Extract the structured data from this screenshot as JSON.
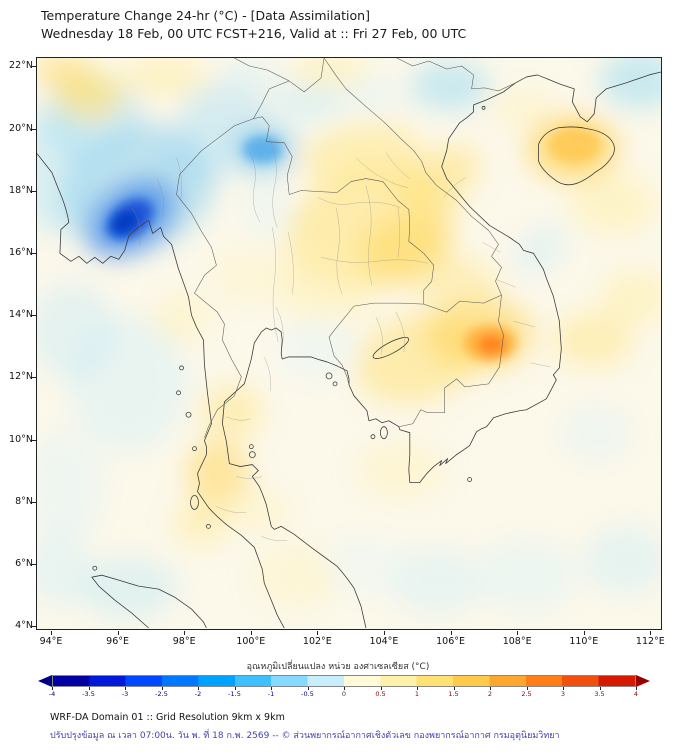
{
  "header": {
    "title": "Temperature Change 24-hr (°C) - [Data Assimilation]",
    "subtitle": "Wednesday 18 Feb, 00 UTC FCST+216, Valid at :: Fri 27 Feb, 00 UTC"
  },
  "map": {
    "projection": {
      "lon0": 93.55,
      "lat0": 22.3,
      "sx": 33.3,
      "sy": 31.1
    },
    "lat_ticks": [
      {
        "value": 22,
        "label": "22°N"
      },
      {
        "value": 20,
        "label": "20°N"
      },
      {
        "value": 18,
        "label": "18°N"
      },
      {
        "value": 16,
        "label": "16°N"
      },
      {
        "value": 14,
        "label": "14°N"
      },
      {
        "value": 12,
        "label": "12°N"
      },
      {
        "value": 10,
        "label": "10°N"
      },
      {
        "value": 8,
        "label": "8°N"
      },
      {
        "value": 6,
        "label": "6°N"
      },
      {
        "value": 4,
        "label": "4°N"
      }
    ],
    "lon_ticks": [
      {
        "value": 94,
        "label": "94°E"
      },
      {
        "value": 96,
        "label": "96°E"
      },
      {
        "value": 98,
        "label": "98°E"
      },
      {
        "value": 100,
        "label": "100°E"
      },
      {
        "value": 102,
        "label": "102°E"
      },
      {
        "value": 104,
        "label": "104°E"
      },
      {
        "value": 106,
        "label": "106°E"
      },
      {
        "value": 108,
        "label": "108°E"
      },
      {
        "value": 110,
        "label": "110°E"
      },
      {
        "value": 112,
        "label": "112°E"
      }
    ],
    "blob_schema": [
      "lon",
      "lat",
      "rx_deg",
      "ry_deg",
      "rotation_deg",
      "color",
      "opacity",
      "layer"
    ],
    "anomaly_blobs": [
      [
        94.1,
        18.6,
        1.2,
        2.0,
        0,
        "#b9e7f7",
        0.5,
        "soft"
      ],
      [
        95.2,
        20.3,
        1.6,
        1.4,
        0,
        "#a8e0f5",
        0.5,
        "soft"
      ],
      [
        99.2,
        20.6,
        1.3,
        0.9,
        0,
        "#b3e2f6",
        0.5,
        "soft"
      ],
      [
        98.3,
        19.2,
        1.2,
        1.0,
        0,
        "#bfe8f7",
        0.5,
        "soft"
      ],
      [
        96.6,
        18.1,
        2.4,
        2.0,
        -20,
        "#8fd2f0",
        0.55,
        "soft"
      ],
      [
        96.4,
        17.15,
        1.5,
        1.05,
        -35,
        "#3b82e8",
        0.7,
        "soft"
      ],
      [
        96.35,
        17.1,
        0.78,
        0.55,
        -35,
        "#0d47d6",
        0.8,
        "core"
      ],
      [
        96.2,
        17.0,
        0.42,
        0.32,
        -35,
        "#0030b8",
        0.75,
        "core"
      ],
      [
        95.1,
        21.1,
        1.05,
        0.8,
        0,
        "#ffe27a",
        0.7,
        "soft"
      ],
      [
        94.3,
        21.9,
        0.9,
        0.55,
        0,
        "#ffd75e",
        0.5,
        "soft"
      ],
      [
        97.4,
        21.7,
        1.3,
        0.7,
        0,
        "#ffeda0",
        0.5,
        "soft"
      ],
      [
        100.0,
        21.8,
        0.9,
        0.5,
        0,
        "#cceef8",
        0.4,
        "soft"
      ],
      [
        101.7,
        20.9,
        1.1,
        0.7,
        0,
        "#c2e9f8",
        0.45,
        "soft"
      ],
      [
        102.4,
        21.9,
        1.2,
        0.6,
        0,
        "#ffeda0",
        0.45,
        "soft"
      ],
      [
        100.35,
        19.35,
        1.0,
        0.8,
        0,
        "#66c0f2",
        0.6,
        "soft"
      ],
      [
        100.35,
        19.35,
        0.6,
        0.45,
        0,
        "#2f96e8",
        0.6,
        "core"
      ],
      [
        103.3,
        19.2,
        1.8,
        1.0,
        -10,
        "#ffe788",
        0.55,
        "soft"
      ],
      [
        103.6,
        16.9,
        2.6,
        1.9,
        -15,
        "#ffe584",
        0.6,
        "soft"
      ],
      [
        104.6,
        16.1,
        1.5,
        1.1,
        -20,
        "#ffd75e",
        0.55,
        "soft"
      ],
      [
        105.6,
        18.4,
        1.4,
        0.9,
        -30,
        "#ffdf70",
        0.5,
        "soft"
      ],
      [
        102.3,
        15.0,
        1.6,
        1.2,
        0,
        "#fff0ae",
        0.5,
        "soft"
      ],
      [
        99.9,
        15.3,
        1.1,
        0.9,
        0,
        "#fff3bb",
        0.4,
        "soft"
      ],
      [
        100.5,
        17.4,
        0.8,
        0.9,
        0,
        "#dbf3fa",
        0.35,
        "soft"
      ],
      [
        106.0,
        21.4,
        1.2,
        0.8,
        0,
        "#9edcf4",
        0.55,
        "soft"
      ],
      [
        103.6,
        21.1,
        0.9,
        0.6,
        0,
        "#d8f1fa",
        0.4,
        "soft"
      ],
      [
        111.7,
        21.6,
        1.2,
        0.95,
        0,
        "#9edcf4",
        0.55,
        "soft"
      ],
      [
        109.7,
        19.4,
        1.4,
        1.05,
        0,
        "#ffd14f",
        0.65,
        "soft"
      ],
      [
        109.75,
        19.5,
        0.8,
        0.6,
        0,
        "#ffbe3c",
        0.6,
        "core"
      ],
      [
        108.2,
        20.7,
        1.0,
        0.6,
        0,
        "#fff0ae",
        0.4,
        "soft"
      ],
      [
        110.9,
        17.6,
        1.3,
        1.0,
        0,
        "#ffeda0",
        0.45,
        "soft"
      ],
      [
        111.6,
        14.6,
        1.1,
        0.9,
        0,
        "#ffeda0",
        0.45,
        "soft"
      ],
      [
        110.3,
        13.2,
        1.2,
        0.9,
        0,
        "#ffe788",
        0.5,
        "soft"
      ],
      [
        108.7,
        16.1,
        0.9,
        0.65,
        -40,
        "#c9ecf8",
        0.45,
        "soft"
      ],
      [
        105.0,
        12.6,
        1.9,
        1.4,
        -15,
        "#ffe27a",
        0.55,
        "soft"
      ],
      [
        106.9,
        13.4,
        1.6,
        1.2,
        0,
        "#ffd14f",
        0.55,
        "soft"
      ],
      [
        107.2,
        13.1,
        0.8,
        0.6,
        0,
        "#ffab35",
        0.8,
        "core"
      ],
      [
        107.25,
        13.05,
        0.42,
        0.32,
        0,
        "#ff7f1a",
        0.85,
        "core"
      ],
      [
        106.2,
        15.0,
        1.2,
        0.9,
        0,
        "#ffe584",
        0.45,
        "soft"
      ],
      [
        99.4,
        10.9,
        0.95,
        0.85,
        0,
        "#ffe584",
        0.5,
        "soft"
      ],
      [
        99.0,
        8.9,
        0.95,
        1.1,
        0,
        "#ffd75e",
        0.55,
        "soft"
      ],
      [
        98.5,
        7.3,
        0.85,
        0.7,
        0,
        "#ffe788",
        0.45,
        "soft"
      ],
      [
        100.2,
        7.7,
        0.95,
        0.7,
        0,
        "#fff0ae",
        0.4,
        "soft"
      ],
      [
        96.3,
        11.8,
        1.8,
        2.2,
        0,
        "#cdeef9",
        0.4,
        "soft"
      ],
      [
        94.6,
        13.5,
        1.3,
        1.6,
        0,
        "#c2e9f8",
        0.4,
        "soft"
      ],
      [
        94.4,
        8.5,
        1.2,
        1.8,
        0,
        "#d8f2fa",
        0.35,
        "soft"
      ],
      [
        96.3,
        5.2,
        1.5,
        1.0,
        0,
        "#bfe8f7",
        0.45,
        "soft"
      ],
      [
        94.2,
        5.8,
        1.0,
        1.2,
        0,
        "#cdeef9",
        0.4,
        "soft"
      ],
      [
        101.4,
        5.6,
        1.3,
        1.0,
        0,
        "#fff0ae",
        0.35,
        "soft"
      ],
      [
        103.4,
        5.9,
        1.2,
        1.0,
        0,
        "#e3f5fb",
        0.35,
        "soft"
      ],
      [
        105.6,
        5.4,
        1.4,
        1.1,
        0,
        "#cdeef9",
        0.4,
        "soft"
      ],
      [
        108.3,
        5.6,
        1.5,
        1.2,
        0,
        "#d8f2fa",
        0.4,
        "soft"
      ],
      [
        111.3,
        6.1,
        1.3,
        1.1,
        0,
        "#cdeef9",
        0.45,
        "soft"
      ],
      [
        110.4,
        10.2,
        1.1,
        0.9,
        0,
        "#d8f2fa",
        0.35,
        "soft"
      ],
      [
        104.5,
        9.0,
        1.3,
        0.9,
        0,
        "#fff0ae",
        0.4,
        "soft"
      ],
      [
        102.0,
        12.9,
        1.2,
        1.0,
        0,
        "#dff4fb",
        0.4,
        "soft"
      ],
      [
        97.9,
        13.9,
        0.9,
        0.8,
        0,
        "#ffeda0",
        0.35,
        "soft"
      ]
    ]
  },
  "colorbar": {
    "title_th": "อุณหภูมิเปลี่ยนแปลง หน่วย องศาเซลเซียส (°C)",
    "min": -4,
    "max": 4,
    "segment_colors": [
      "#0000a3",
      "#0018d8",
      "#0048ff",
      "#0078ff",
      "#00a2ff",
      "#3cc0ff",
      "#86d9ff",
      "#c8edfd",
      "#fdfbd8",
      "#fff2a8",
      "#ffe272",
      "#ffc94a",
      "#ffa62e",
      "#ff7f16",
      "#f14f0e",
      "#d61a00"
    ],
    "left_arrow_color": "#000080",
    "right_arrow_color": "#9b0000",
    "neg_label_color": "#00008b",
    "pos_label_color": "#8b0000",
    "zero_label_color": "#333333",
    "tick_values": [
      {
        "v": -4,
        "label": "-4"
      },
      {
        "v": -3.5,
        "label": "-3.5"
      },
      {
        "v": -3,
        "label": "-3"
      },
      {
        "v": -2.5,
        "label": "-2.5"
      },
      {
        "v": -2,
        "label": "-2"
      },
      {
        "v": -1.5,
        "label": "-1.5"
      },
      {
        "v": -1,
        "label": "-1"
      },
      {
        "v": -0.5,
        "label": "-0.5"
      },
      {
        "v": 0,
        "label": "0"
      },
      {
        "v": 0.5,
        "label": "0.5"
      },
      {
        "v": 1,
        "label": "1"
      },
      {
        "v": 1.5,
        "label": "1.5"
      },
      {
        "v": 2,
        "label": "2"
      },
      {
        "v": 2.5,
        "label": "2.5"
      },
      {
        "v": 3,
        "label": "3"
      },
      {
        "v": 3.5,
        "label": "3.5"
      },
      {
        "v": 4,
        "label": "4"
      }
    ]
  },
  "footer": {
    "line1": "WRF-DA Domain 01 :: Grid Resolution 9km x 9km",
    "line2": "ปรับปรุงข้อมูล ณ เวลา 07:00น. วัน พ. ที่ 18 ก.พ. 2569 -- © ส่วนพยากรณ์อากาศเชิงตัวเลข กองพยากรณ์อากาศ กรมอุตุนิยมวิทยา"
  }
}
